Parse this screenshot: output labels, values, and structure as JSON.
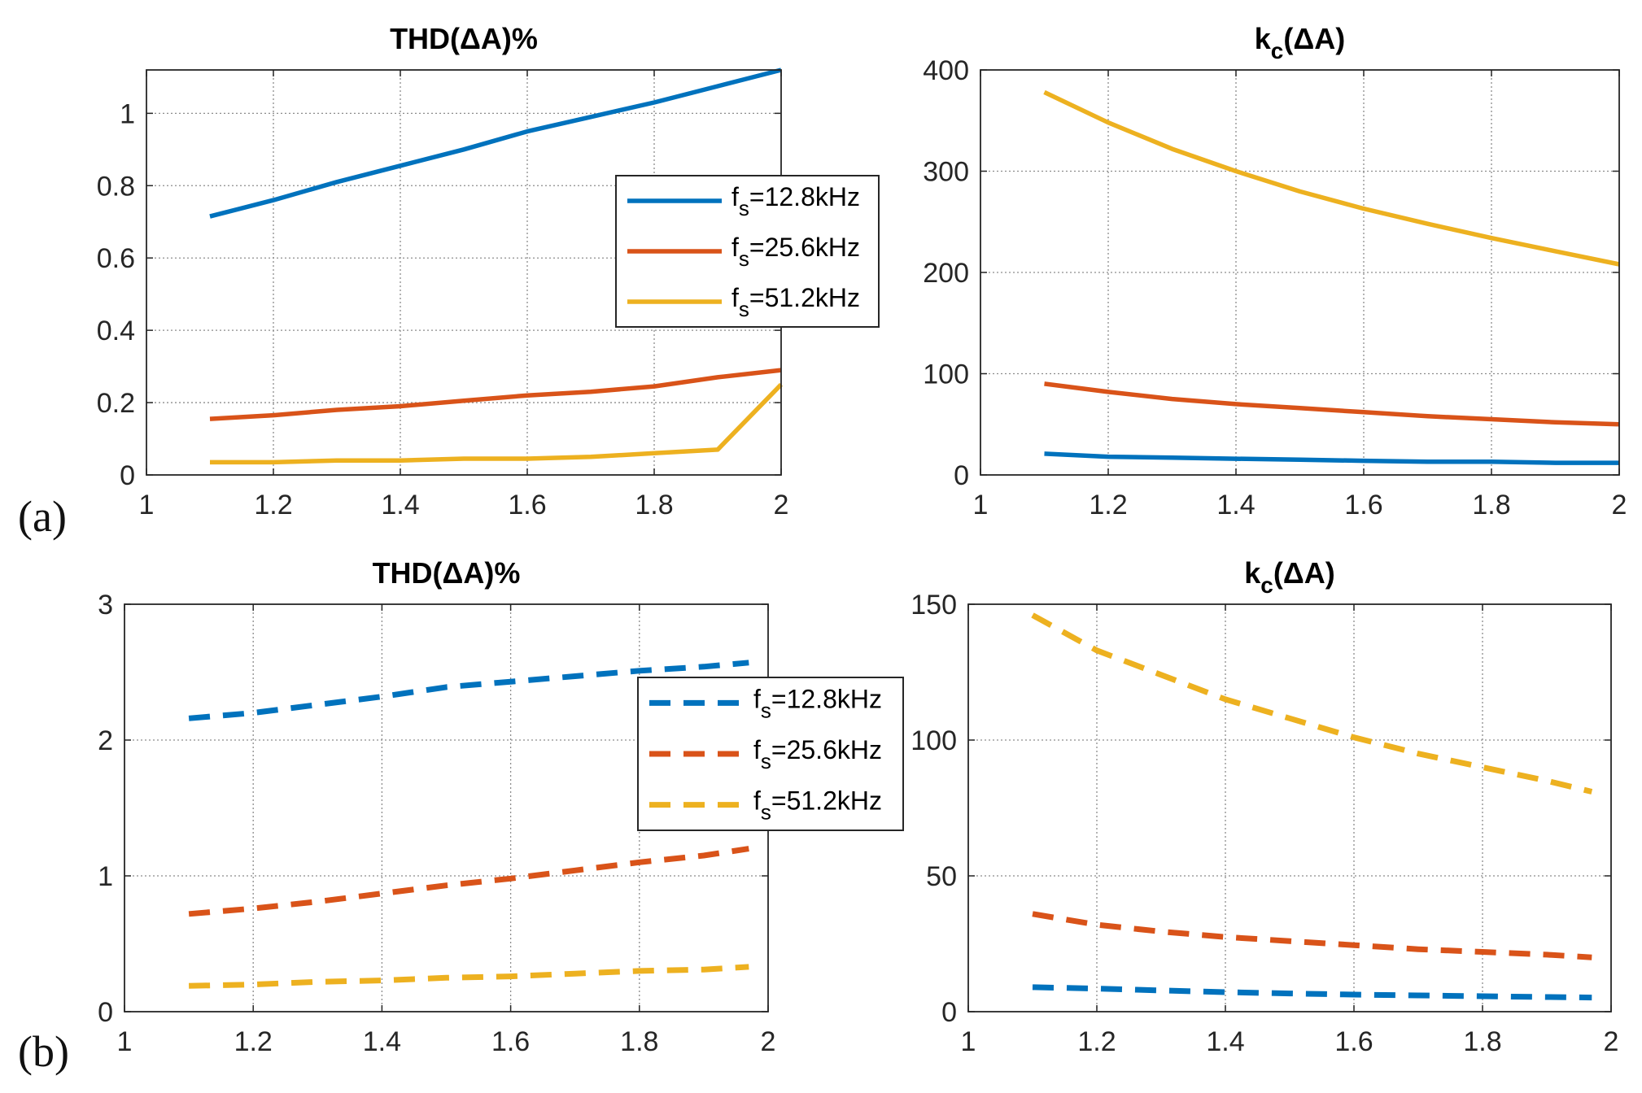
{
  "panel_labels": {
    "a": "(a)",
    "b": "(b)"
  },
  "legend_prefix": "f",
  "legend_subscript": "s",
  "colors": {
    "blue": "#0072BD",
    "orange": "#D95319",
    "yellow": "#EDB120",
    "grid": "#8c8c8c",
    "axis": "#262626"
  },
  "chart_data": [
    {
      "id": "a-left",
      "type": "line",
      "title": "THD(ΔA)%",
      "title_parts": {
        "main": "THD(ΔA)%",
        "sub": "",
        "suffix": ""
      },
      "xlabel": "",
      "ylabel": "",
      "xlim": [
        1,
        2
      ],
      "ylim": [
        0,
        1.12
      ],
      "xticks": [
        1,
        1.2,
        1.4,
        1.6,
        1.8,
        2
      ],
      "xtick_labels": [
        "1",
        "1.2",
        "1.4",
        "1.6",
        "1.8",
        "2"
      ],
      "yticks": [
        0,
        0.2,
        0.4,
        0.6,
        0.8,
        1
      ],
      "ytick_labels": [
        "0",
        "0.2",
        "0.4",
        "0.6",
        "0.8",
        "1"
      ],
      "grid": true,
      "line_style": "solid",
      "legend": {
        "position": "right-center",
        "entries": [
          "=12.8kHz",
          "=25.6kHz",
          "=51.2kHz"
        ]
      },
      "series": [
        {
          "name": "fs=12.8kHz",
          "color": "#0072BD",
          "x": [
            1.1,
            1.2,
            1.3,
            1.4,
            1.5,
            1.6,
            1.7,
            1.8,
            1.9,
            2.0
          ],
          "values": [
            0.715,
            0.76,
            0.81,
            0.855,
            0.9,
            0.95,
            0.99,
            1.03,
            1.075,
            1.12
          ]
        },
        {
          "name": "fs=25.6kHz",
          "color": "#D95319",
          "x": [
            1.1,
            1.2,
            1.3,
            1.4,
            1.5,
            1.6,
            1.7,
            1.8,
            1.9,
            2.0
          ],
          "values": [
            0.155,
            0.165,
            0.18,
            0.19,
            0.205,
            0.22,
            0.23,
            0.245,
            0.27,
            0.29
          ]
        },
        {
          "name": "fs=51.2kHz",
          "color": "#EDB120",
          "x": [
            1.1,
            1.2,
            1.3,
            1.4,
            1.5,
            1.6,
            1.7,
            1.8,
            1.9,
            2.0
          ],
          "values": [
            0.035,
            0.035,
            0.04,
            0.04,
            0.045,
            0.045,
            0.05,
            0.06,
            0.07,
            0.25
          ]
        }
      ]
    },
    {
      "id": "a-right",
      "type": "line",
      "title": "kc(ΔA)",
      "title_parts": {
        "main": "k",
        "sub": "c",
        "suffix": "(ΔA)"
      },
      "xlabel": "",
      "ylabel": "",
      "xlim": [
        1,
        2
      ],
      "ylim": [
        0,
        400
      ],
      "xticks": [
        1,
        1.2,
        1.4,
        1.6,
        1.8,
        2
      ],
      "xtick_labels": [
        "1",
        "1.2",
        "1.4",
        "1.6",
        "1.8",
        "2"
      ],
      "yticks": [
        0,
        100,
        200,
        300,
        400
      ],
      "ytick_labels": [
        "0",
        "100",
        "200",
        "300",
        "400"
      ],
      "grid": true,
      "line_style": "solid",
      "legend": null,
      "series": [
        {
          "name": "fs=12.8kHz",
          "color": "#0072BD",
          "x": [
            1.1,
            1.2,
            1.3,
            1.4,
            1.5,
            1.6,
            1.7,
            1.8,
            1.9,
            2.0
          ],
          "values": [
            21,
            18,
            17,
            16,
            15,
            14,
            13,
            13,
            12,
            12
          ]
        },
        {
          "name": "fs=25.6kHz",
          "color": "#D95319",
          "x": [
            1.1,
            1.2,
            1.3,
            1.4,
            1.5,
            1.6,
            1.7,
            1.8,
            1.9,
            2.0
          ],
          "values": [
            90,
            82,
            75,
            70,
            66,
            62,
            58,
            55,
            52,
            50
          ]
        },
        {
          "name": "fs=51.2kHz",
          "color": "#EDB120",
          "x": [
            1.1,
            1.2,
            1.3,
            1.4,
            1.5,
            1.6,
            1.7,
            1.8,
            1.9,
            2.0
          ],
          "values": [
            378,
            348,
            322,
            300,
            280,
            263,
            248,
            234,
            221,
            208
          ]
        }
      ]
    },
    {
      "id": "b-left",
      "type": "line",
      "title": "THD(ΔA)%",
      "title_parts": {
        "main": "THD(ΔA)%",
        "sub": "",
        "suffix": ""
      },
      "xlabel": "",
      "ylabel": "",
      "xlim": [
        1,
        2
      ],
      "ylim": [
        0,
        3
      ],
      "xticks": [
        1,
        1.2,
        1.4,
        1.6,
        1.8,
        2
      ],
      "xtick_labels": [
        "1",
        "1.2",
        "1.4",
        "1.6",
        "1.8",
        "2"
      ],
      "yticks": [
        0,
        1,
        2,
        3
      ],
      "ytick_labels": [
        "0",
        "1",
        "2",
        "3"
      ],
      "grid": true,
      "line_style": "dashed",
      "legend": {
        "position": "right-center",
        "entries": [
          "=12.8kHz",
          "=25.6kHz",
          "=51.2kHz"
        ]
      },
      "series": [
        {
          "name": "fs=12.8kHz",
          "color": "#0072BD",
          "x": [
            1.1,
            1.2,
            1.3,
            1.4,
            1.5,
            1.6,
            1.7,
            1.8,
            1.9,
            1.97
          ],
          "values": [
            2.16,
            2.2,
            2.26,
            2.32,
            2.39,
            2.43,
            2.47,
            2.51,
            2.54,
            2.57
          ]
        },
        {
          "name": "fs=25.6kHz",
          "color": "#D95319",
          "x": [
            1.1,
            1.2,
            1.3,
            1.4,
            1.5,
            1.6,
            1.7,
            1.8,
            1.9,
            1.97
          ],
          "values": [
            0.72,
            0.76,
            0.81,
            0.87,
            0.93,
            0.98,
            1.04,
            1.1,
            1.15,
            1.2
          ]
        },
        {
          "name": "fs=51.2kHz",
          "color": "#EDB120",
          "x": [
            1.1,
            1.2,
            1.3,
            1.4,
            1.5,
            1.6,
            1.7,
            1.8,
            1.9,
            1.97
          ],
          "values": [
            0.19,
            0.2,
            0.22,
            0.23,
            0.25,
            0.26,
            0.28,
            0.3,
            0.31,
            0.33
          ]
        }
      ]
    },
    {
      "id": "b-right",
      "type": "line",
      "title": "kc(ΔA)",
      "title_parts": {
        "main": "k",
        "sub": "c",
        "suffix": "(ΔA)"
      },
      "xlabel": "",
      "ylabel": "",
      "xlim": [
        1,
        2
      ],
      "ylim": [
        0,
        150
      ],
      "xticks": [
        1,
        1.2,
        1.4,
        1.6,
        1.8,
        2
      ],
      "xtick_labels": [
        "1",
        "1.2",
        "1.4",
        "1.6",
        "1.8",
        "2"
      ],
      "yticks": [
        0,
        50,
        100,
        150
      ],
      "ytick_labels": [
        "0",
        "50",
        "100",
        "150"
      ],
      "grid": true,
      "line_style": "dashed",
      "legend": null,
      "series": [
        {
          "name": "fs=12.8kHz",
          "color": "#0072BD",
          "x": [
            1.1,
            1.2,
            1.3,
            1.4,
            1.5,
            1.6,
            1.7,
            1.8,
            1.9,
            1.97
          ],
          "values": [
            9,
            8.5,
            7.8,
            7.2,
            6.7,
            6.3,
            6.0,
            5.7,
            5.4,
            5.2
          ]
        },
        {
          "name": "fs=25.6kHz",
          "color": "#D95319",
          "x": [
            1.1,
            1.2,
            1.3,
            1.4,
            1.5,
            1.6,
            1.7,
            1.8,
            1.9,
            1.97
          ],
          "values": [
            36,
            32,
            29.5,
            27.5,
            26,
            24.5,
            23,
            22,
            21,
            20
          ]
        },
        {
          "name": "fs=51.2kHz",
          "color": "#EDB120",
          "x": [
            1.1,
            1.2,
            1.3,
            1.4,
            1.5,
            1.6,
            1.7,
            1.8,
            1.9,
            1.97
          ],
          "values": [
            146,
            133,
            124,
            115,
            108,
            101,
            95,
            90,
            85,
            81
          ]
        }
      ]
    }
  ]
}
